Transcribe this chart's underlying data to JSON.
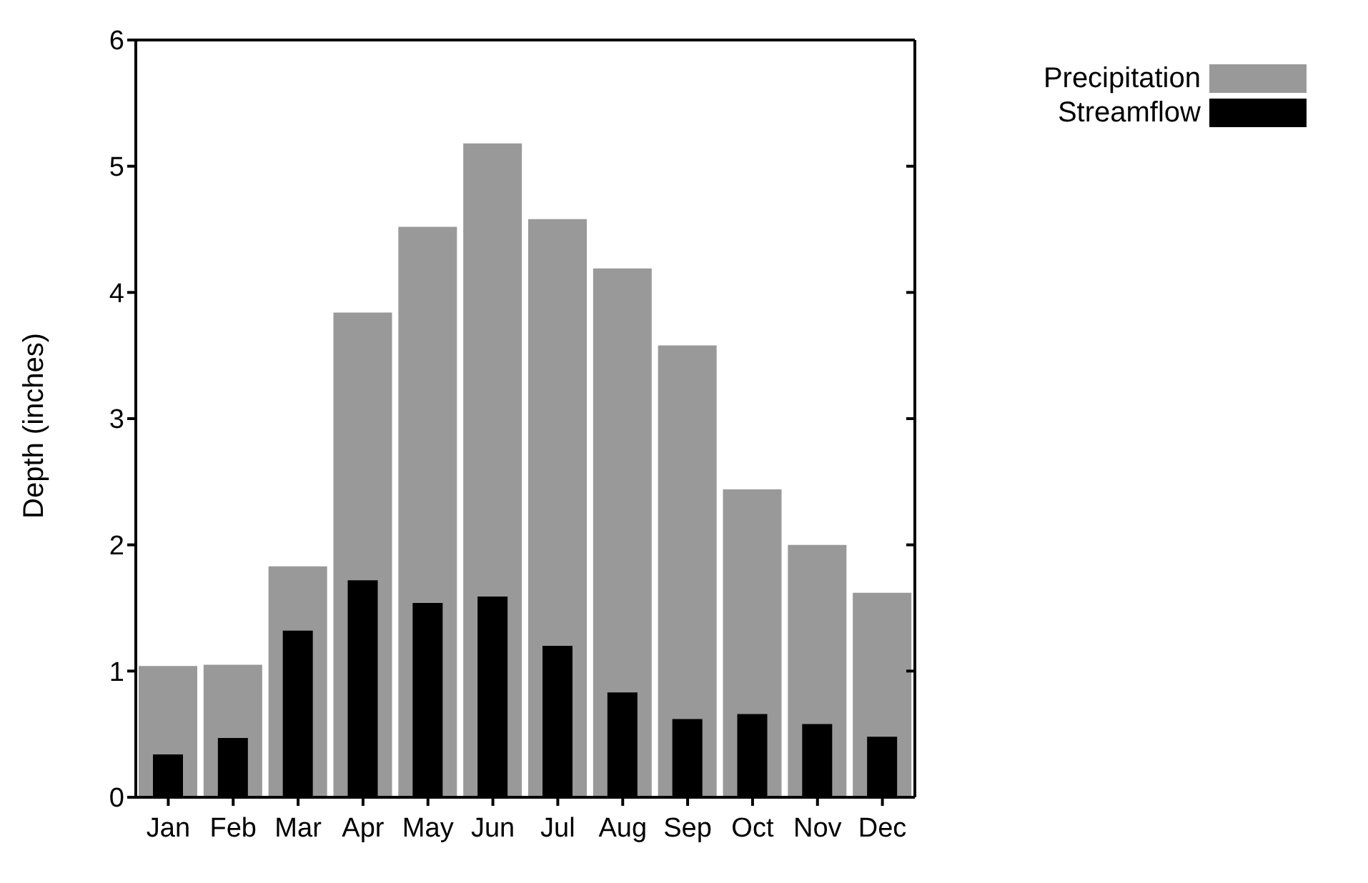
{
  "chart_data": {
    "type": "bar",
    "ylabel": "Depth (inches)",
    "categories": [
      "Jan",
      "Feb",
      "Mar",
      "Apr",
      "May",
      "Jun",
      "Jul",
      "Aug",
      "Sep",
      "Oct",
      "Nov",
      "Dec"
    ],
    "series": [
      {
        "name": "Precipitation",
        "color": "#999999",
        "values": [
          1.04,
          1.05,
          1.83,
          3.84,
          4.52,
          5.18,
          4.58,
          4.19,
          3.58,
          2.44,
          2.0,
          1.62
        ]
      },
      {
        "name": "Streamflow",
        "color": "#000000",
        "values": [
          0.34,
          0.47,
          1.32,
          1.72,
          1.54,
          1.59,
          1.2,
          0.83,
          0.62,
          0.66,
          0.58,
          0.48
        ]
      }
    ],
    "ylim": [
      0,
      6
    ],
    "yticks": [
      0,
      1,
      2,
      3,
      4,
      5,
      6
    ],
    "grid": false,
    "legend": "top right"
  }
}
